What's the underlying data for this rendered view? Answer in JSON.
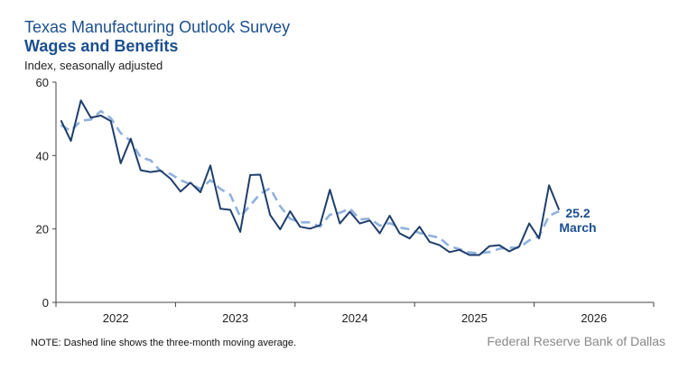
{
  "chart_data": {
    "type": "line",
    "title": "Texas Manufacturing Outlook Survey",
    "subtitle": "Wages and Benefits",
    "ylabel": "Index, seasonally adjusted",
    "ylim": [
      0,
      60
    ],
    "yticks": [
      "0",
      "20",
      "40",
      "60"
    ],
    "xticks": [
      "2022",
      "2023",
      "2024",
      "2025",
      "2026"
    ],
    "x_start": "2022-01",
    "x_end_axis": "2026-12",
    "grid": false,
    "series": [
      {
        "name": "Wages and Benefits index",
        "style": "solid",
        "color": "#1f3e6c",
        "values": [
          49.6,
          44.0,
          55.0,
          50.3,
          50.9,
          49.4,
          37.9,
          44.6,
          36.0,
          35.5,
          35.9,
          33.7,
          30.2,
          32.6,
          30.0,
          37.3,
          25.5,
          25.2,
          19.2,
          34.7,
          34.8,
          23.8,
          19.9,
          24.8,
          20.6,
          20.1,
          21.0,
          30.7,
          21.5,
          24.7,
          21.5,
          22.3,
          18.8,
          23.6,
          18.8,
          17.4,
          20.6,
          16.5,
          15.6,
          13.7,
          14.3,
          12.9,
          12.9,
          15.3,
          15.6,
          13.9,
          15.2,
          21.5,
          17.4,
          31.9,
          25.2
        ]
      },
      {
        "name": "Three-month moving average",
        "style": "dashed",
        "color": "#8fb1de",
        "values": [
          48.3,
          46.7,
          49.5,
          49.8,
          52.1,
          50.2,
          46.1,
          44.0,
          39.5,
          38.7,
          35.8,
          35.0,
          33.3,
          32.2,
          30.9,
          33.3,
          30.9,
          29.3,
          23.3,
          26.4,
          29.6,
          31.1,
          26.2,
          22.8,
          21.8,
          21.8,
          20.6,
          23.9,
          24.4,
          25.6,
          22.6,
          22.8,
          20.9,
          21.6,
          20.4,
          19.9,
          18.9,
          18.2,
          17.6,
          15.3,
          14.5,
          13.6,
          13.4,
          13.7,
          14.6,
          14.9,
          14.9,
          16.9,
          18.0,
          23.6,
          24.8
        ]
      }
    ],
    "annotation": {
      "value": "25.2",
      "label": "March"
    },
    "note": "NOTE: Dashed line shows the three-month moving average.",
    "source": "Federal Reserve Bank of Dallas"
  }
}
